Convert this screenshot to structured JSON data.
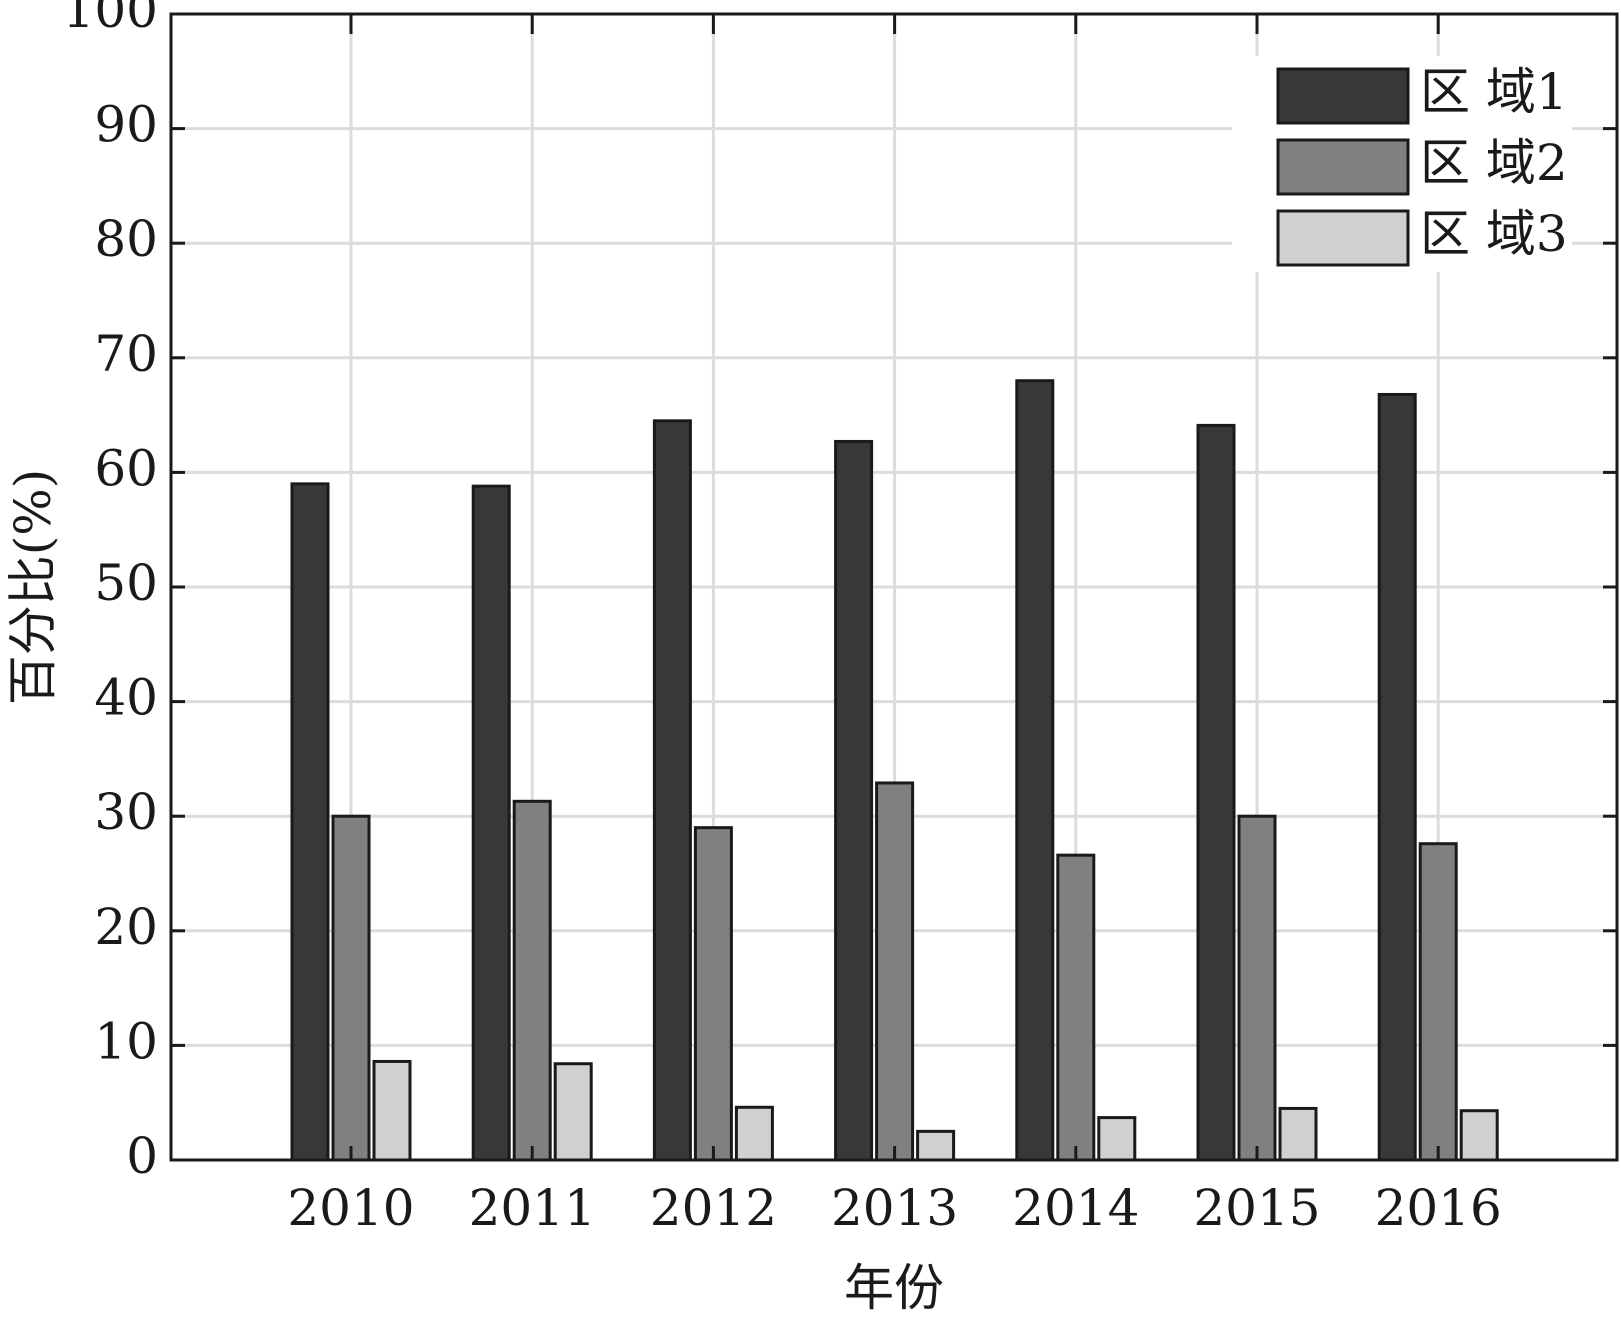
{
  "chart_data": {
    "type": "bar",
    "categories": [
      "2010",
      "2011",
      "2012",
      "2013",
      "2014",
      "2015",
      "2016"
    ],
    "series": [
      {
        "name": "区 域1",
        "color": "#383838",
        "values": [
          59.0,
          58.8,
          64.5,
          62.7,
          68.0,
          64.1,
          66.8
        ]
      },
      {
        "name": "区 域2",
        "color": "#808080",
        "values": [
          30.0,
          31.3,
          29.0,
          32.9,
          26.6,
          30.0,
          27.6
        ]
      },
      {
        "name": "区 域3",
        "color": "#d0d0d0",
        "values": [
          8.6,
          8.4,
          4.6,
          2.5,
          3.7,
          4.5,
          4.3
        ]
      }
    ],
    "xlabel": "年份",
    "ylabel": "百分比(%)",
    "ylim": [
      0,
      100
    ],
    "yticks": [
      "0",
      "10",
      "20",
      "30",
      "40",
      "50",
      "60",
      "70",
      "80",
      "90",
      "100"
    ],
    "grid": true,
    "legend": "top-right"
  }
}
